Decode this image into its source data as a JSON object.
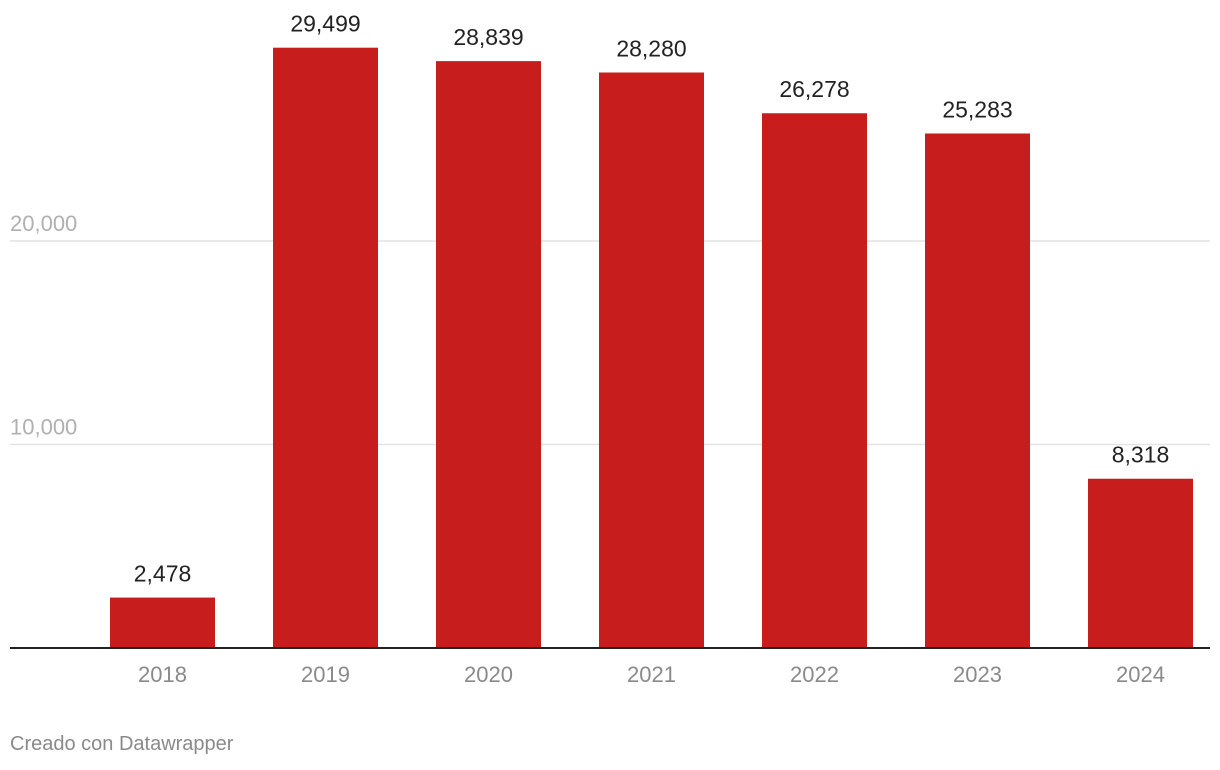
{
  "chart_data": {
    "type": "bar",
    "categories": [
      "2018",
      "2019",
      "2020",
      "2021",
      "2022",
      "2023",
      "2024"
    ],
    "values": [
      2478,
      29499,
      28839,
      28280,
      26278,
      25283,
      8318
    ],
    "value_labels": [
      "2,478",
      "29,499",
      "28,839",
      "28,280",
      "26,278",
      "25,283",
      "8,318"
    ],
    "y_ticks": [
      10000,
      20000
    ],
    "y_tick_labels": [
      "10,000",
      "20,000"
    ],
    "ylim": [
      0,
      30000
    ],
    "grid": true,
    "title": "",
    "xlabel": "",
    "ylabel": "",
    "bar_color": "#c81d1d",
    "gridline_color": "#e3e3e3",
    "axis_color": "#222222",
    "tick_label_color": "#b0b0b0",
    "category_label_color": "#8a8a8a",
    "value_label_color": "#222222"
  },
  "footer": {
    "credit": "Creado con Datawrapper"
  }
}
